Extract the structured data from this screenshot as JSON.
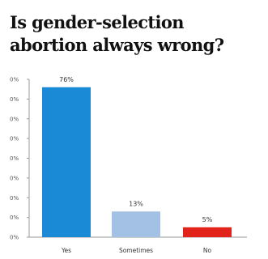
{
  "chart_data": {
    "type": "bar",
    "title": "Is gender-selection abortion always wrong?",
    "categories": [
      "Yes",
      "Sometimes",
      "No"
    ],
    "values": [
      76,
      13,
      5
    ],
    "value_labels": [
      "76%",
      "13%",
      "5%"
    ],
    "colors": [
      "#1b8ad6",
      "#a3c1e4",
      "#e2231a"
    ],
    "ylim": [
      0,
      80
    ],
    "yticks": [
      "0%",
      "0%",
      "0%",
      "0%",
      "0%",
      "0%",
      "0%",
      "0%",
      "0%"
    ],
    "grid": false,
    "legend": "none"
  }
}
